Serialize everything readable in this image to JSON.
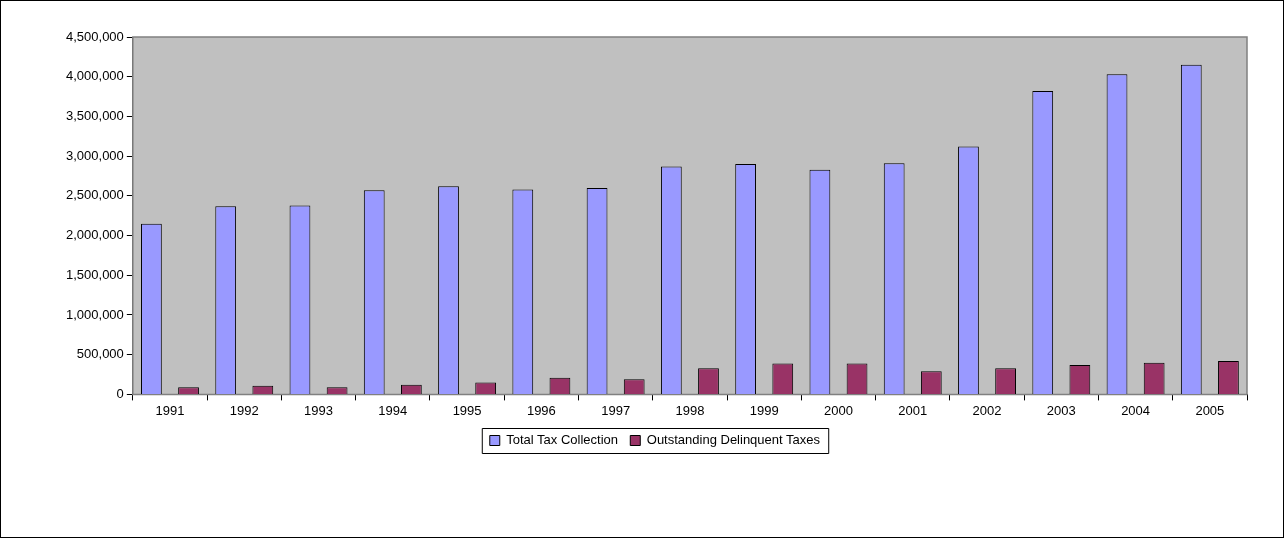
{
  "chart_data": {
    "type": "bar",
    "categories": [
      "1991",
      "1992",
      "1993",
      "1994",
      "1995",
      "1996",
      "1997",
      "1998",
      "1999",
      "2000",
      "2001",
      "2002",
      "2003",
      "2004",
      "2005"
    ],
    "series": [
      {
        "name": "Total Tax Collection",
        "color": "#9999ff",
        "values": [
          2150000,
          2370000,
          2380000,
          2570000,
          2620000,
          2580000,
          2600000,
          2870000,
          2900000,
          2830000,
          2910000,
          3120000,
          3820000,
          4030000,
          4150000
        ]
      },
      {
        "name": "Outstanding Delinquent Taxes",
        "color": "#993366",
        "values": [
          90000,
          110000,
          90000,
          120000,
          150000,
          210000,
          190000,
          330000,
          390000,
          390000,
          290000,
          330000,
          370000,
          400000,
          420000
        ]
      }
    ],
    "ylim": [
      0,
      4500000
    ],
    "yticks": [
      0,
      {
        "value": 500000,
        "label": "500,000"
      },
      {
        "value": 1000000,
        "label": "1,000,000"
      },
      {
        "value": 1500000,
        "label": "1,500,000"
      },
      {
        "value": 2000000,
        "label": "2,000,000"
      },
      {
        "value": 2500000,
        "label": "2,500,000"
      },
      {
        "value": 3000000,
        "label": "3,000,000"
      },
      {
        "value": 3500000,
        "label": "3,500,000"
      },
      {
        "value": 4000000,
        "label": "4,000,000"
      },
      {
        "value": 4500000,
        "label": "4,500,000"
      }
    ],
    "legend": "bottom"
  }
}
